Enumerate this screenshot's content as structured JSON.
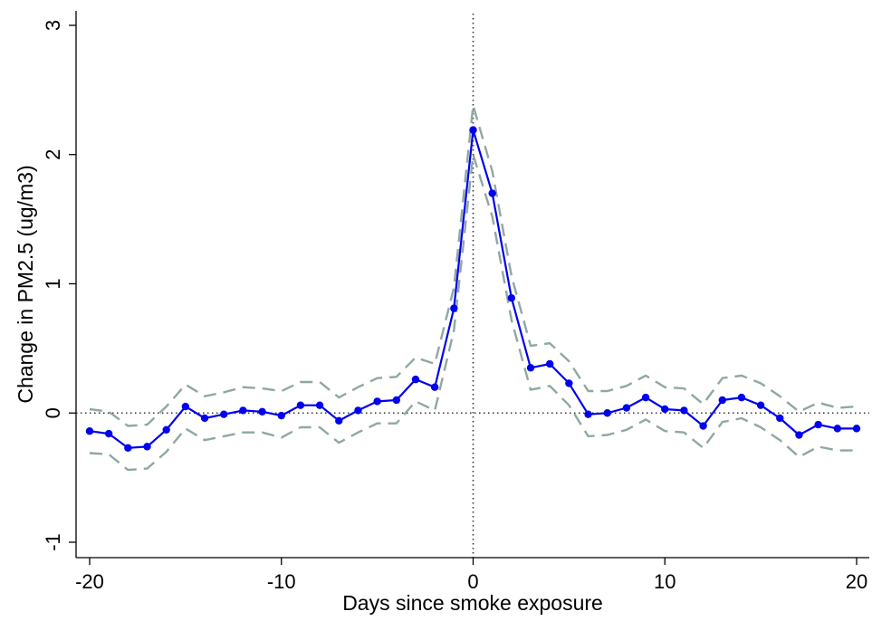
{
  "chart_data": {
    "type": "line",
    "xlabel": "Days since smoke exposure",
    "ylabel": "Change in PM2.5 (ug/m3)",
    "xlim": [
      -20,
      20
    ],
    "ylim": [
      -1,
      3
    ],
    "xticks": [
      -20,
      -10,
      0,
      10,
      20
    ],
    "yticks": [
      -1,
      0,
      1,
      2,
      3
    ],
    "reference_lines": {
      "x": 0,
      "y": 0,
      "style": "dotted"
    },
    "grid": false,
    "legend": "none",
    "x": [
      -20,
      -19,
      -18,
      -17,
      -16,
      -15,
      -14,
      -13,
      -12,
      -11,
      -10,
      -9,
      -8,
      -7,
      -6,
      -5,
      -4,
      -3,
      -2,
      -1,
      0,
      1,
      2,
      3,
      4,
      5,
      6,
      7,
      8,
      9,
      10,
      11,
      12,
      13,
      14,
      15,
      16,
      17,
      18,
      19,
      20
    ],
    "series": [
      {
        "role": "estimate",
        "color": "#0000ee",
        "style": "solid-with-markers",
        "values": [
          -0.14,
          -0.16,
          -0.27,
          -0.26,
          -0.13,
          0.05,
          -0.04,
          -0.01,
          0.02,
          0.01,
          -0.02,
          0.06,
          0.06,
          -0.06,
          0.02,
          0.09,
          0.1,
          0.26,
          0.2,
          0.81,
          2.19,
          1.7,
          0.89,
          0.35,
          0.38,
          0.23,
          -0.01,
          0.0,
          0.04,
          0.12,
          0.03,
          0.02,
          -0.1,
          0.1,
          0.12,
          0.06,
          -0.04,
          -0.17,
          -0.09,
          -0.12,
          -0.12
        ]
      },
      {
        "role": "upper-ci",
        "color": "#8fa8a2",
        "style": "dashed",
        "values": [
          0.03,
          0.01,
          -0.1,
          -0.09,
          0.05,
          0.22,
          0.13,
          0.16,
          0.2,
          0.19,
          0.17,
          0.24,
          0.24,
          0.12,
          0.2,
          0.27,
          0.28,
          0.43,
          0.38,
          0.97,
          2.38,
          1.87,
          1.06,
          0.52,
          0.54,
          0.4,
          0.17,
          0.17,
          0.21,
          0.29,
          0.2,
          0.19,
          0.07,
          0.27,
          0.29,
          0.23,
          0.13,
          0.01,
          0.08,
          0.04,
          0.05
        ]
      },
      {
        "role": "lower-ci",
        "color": "#8fa8a2",
        "style": "dashed",
        "values": [
          -0.31,
          -0.32,
          -0.44,
          -0.43,
          -0.3,
          -0.12,
          -0.21,
          -0.18,
          -0.15,
          -0.15,
          -0.19,
          -0.11,
          -0.11,
          -0.23,
          -0.15,
          -0.08,
          -0.08,
          0.09,
          0.02,
          0.64,
          2.0,
          1.52,
          0.72,
          0.18,
          0.21,
          0.06,
          -0.18,
          -0.17,
          -0.13,
          -0.05,
          -0.14,
          -0.15,
          -0.27,
          -0.07,
          -0.04,
          -0.11,
          -0.21,
          -0.34,
          -0.26,
          -0.29,
          -0.29
        ]
      }
    ]
  }
}
